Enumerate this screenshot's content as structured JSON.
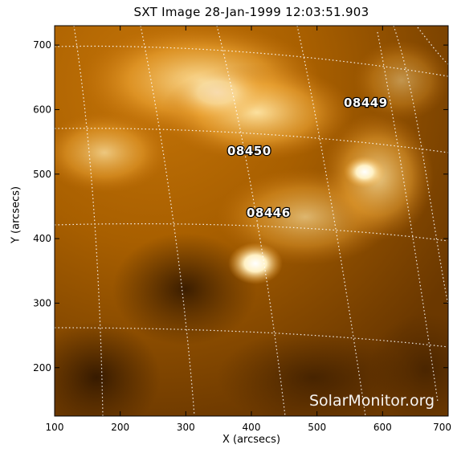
{
  "title": "SXT Image 28-Jan-1999 12:03:51.903",
  "x_axis": {
    "label": "X (arcsecs)",
    "ticks": [
      "100",
      "200",
      "300",
      "400",
      "500",
      "600",
      "700"
    ]
  },
  "y_axis": {
    "label": "Y (arcsecs)",
    "ticks": [
      "200",
      "300",
      "400",
      "500",
      "600",
      "700"
    ]
  },
  "regions": [
    "08449",
    "08450",
    "08446"
  ],
  "watermark": "SolarMonitor.org",
  "colors": {
    "background": "#8a4a00",
    "bright": "#ffe9b0",
    "grid": "#ffffff"
  }
}
